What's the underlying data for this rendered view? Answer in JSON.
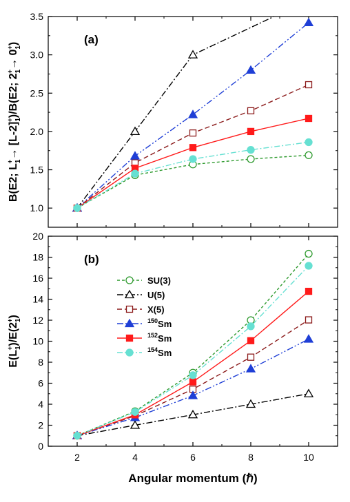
{
  "chart_data": [
    {
      "type": "line",
      "panel_label": "(a)",
      "ylabel": "B(E2; L1+→ [L-2]1+)/B(E2; 21+→ 01+)",
      "xlim": [
        1,
        11
      ],
      "ylim": [
        0.75,
        3.5
      ],
      "y_ticks": [
        1.0,
        1.5,
        2.0,
        2.5,
        3.0,
        3.5
      ],
      "y_tick_labels": [
        "1.0",
        "1.5",
        "2.0",
        "2.5",
        "3.0",
        "3.5"
      ],
      "x_ticks": [
        2,
        4,
        6,
        8,
        10
      ],
      "grid": false,
      "series": [
        {
          "key": "su3",
          "x": [
            2,
            4,
            6,
            8,
            10
          ],
          "values": [
            1.0,
            1.43,
            1.57,
            1.64,
            1.69
          ]
        },
        {
          "key": "u5",
          "x": [
            2,
            4,
            6,
            8.8
          ],
          "values": [
            1.0,
            2.0,
            3.0,
            3.5
          ]
        },
        {
          "key": "x5",
          "x": [
            2,
            4,
            6,
            8,
            10
          ],
          "values": [
            1.0,
            1.59,
            1.98,
            2.27,
            2.61
          ]
        },
        {
          "key": "sm150",
          "x": [
            2,
            4,
            6,
            8,
            10
          ],
          "values": [
            1.0,
            1.68,
            2.22,
            2.8,
            3.42
          ]
        },
        {
          "key": "sm152",
          "x": [
            2,
            4,
            6,
            8,
            10
          ],
          "values": [
            1.0,
            1.52,
            1.79,
            2.0,
            2.17
          ]
        },
        {
          "key": "sm154",
          "x": [
            2,
            4,
            6,
            8,
            10
          ],
          "values": [
            1.0,
            1.45,
            1.64,
            1.76,
            1.86
          ]
        }
      ]
    },
    {
      "type": "line",
      "panel_label": "(b)",
      "ylabel": "E(L1+)/E(21+)",
      "xlabel": "Angular momentum (ℏ)",
      "xlim": [
        1,
        11
      ],
      "ylim": [
        0,
        20
      ],
      "y_ticks": [
        0,
        2,
        4,
        6,
        8,
        10,
        12,
        14,
        16,
        18,
        20
      ],
      "x_ticks": [
        2,
        4,
        6,
        8,
        10
      ],
      "x_tick_labels": [
        "2",
        "4",
        "6",
        "8",
        "10"
      ],
      "grid": false,
      "legend_position": "top-left",
      "series": [
        {
          "key": "su3",
          "name": "SU(3)",
          "x": [
            2,
            4,
            6,
            8,
            10
          ],
          "values": [
            1.0,
            3.33,
            7.0,
            12.0,
            18.33
          ]
        },
        {
          "key": "u5",
          "name": "U(5)",
          "x": [
            2,
            4,
            6,
            8,
            10
          ],
          "values": [
            1.0,
            2.0,
            3.0,
            4.0,
            5.0
          ]
        },
        {
          "key": "x5",
          "name": "X(5)",
          "x": [
            2,
            4,
            6,
            8,
            10
          ],
          "values": [
            1.0,
            2.9,
            5.43,
            8.48,
            12.03
          ]
        },
        {
          "key": "sm150",
          "name": "150Sm",
          "x": [
            2,
            4,
            6,
            8,
            10
          ],
          "values": [
            1.0,
            2.73,
            4.82,
            7.37,
            10.2
          ]
        },
        {
          "key": "sm152",
          "name": "152Sm",
          "x": [
            2,
            4,
            6,
            8,
            10
          ],
          "values": [
            1.0,
            2.99,
            6.13,
            10.05,
            14.75
          ]
        },
        {
          "key": "sm154",
          "name": "154Sm",
          "x": [
            2,
            4,
            6,
            8,
            10
          ],
          "values": [
            1.0,
            3.26,
            6.76,
            11.42,
            17.18
          ]
        }
      ]
    }
  ],
  "styles": {
    "su3": {
      "color": "#2e9a2e",
      "marker": "circle-open",
      "dash": "4,3"
    },
    "u5": {
      "color": "#000000",
      "marker": "triangle-open",
      "dash": "9,3,2,3"
    },
    "x5": {
      "color": "#8b1a1a",
      "marker": "square-open",
      "dash": "7,4"
    },
    "sm150": {
      "color": "#1f3fd6",
      "marker": "triangle-filled",
      "dash": "9,3,2,3,2,3"
    },
    "sm152": {
      "color": "#ff1a1a",
      "marker": "square-filled",
      "dash": ""
    },
    "sm154": {
      "color": "#66e0d2",
      "marker": "circle-filled",
      "dash": "8,3,2,3"
    }
  }
}
